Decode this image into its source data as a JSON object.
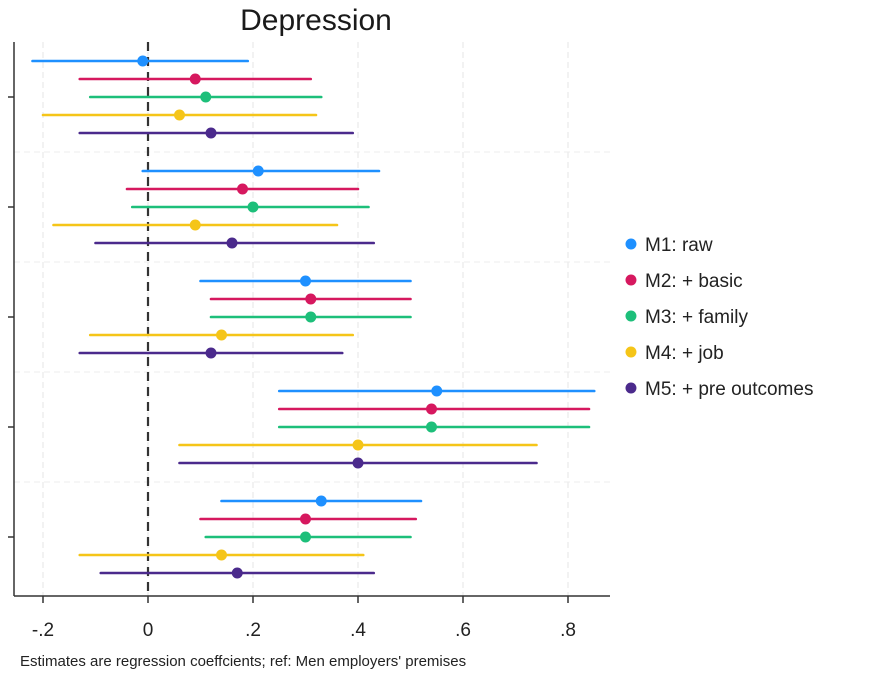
{
  "chart_data": {
    "type": "coefficient-plot",
    "title": "Depression",
    "note": "Estimates are regression coeffcients; ref: Men employers' premises",
    "x_ticks": [
      -0.2,
      0,
      0.2,
      0.4,
      0.6,
      0.8
    ],
    "x_tick_labels": [
      "-.2",
      "0",
      ".2",
      ".4",
      ".6",
      ".8"
    ],
    "xlim": [
      -0.24,
      0.88
    ],
    "reference_line": 0,
    "grid": true,
    "legend_position": "right",
    "groups_count": 5,
    "series": [
      {
        "name": "M1: raw",
        "color": "#1e90ff",
        "points": [
          {
            "est": -0.01,
            "lo": -0.22,
            "hi": 0.19
          },
          {
            "est": 0.21,
            "lo": -0.01,
            "hi": 0.44
          },
          {
            "est": 0.3,
            "lo": 0.1,
            "hi": 0.5
          },
          {
            "est": 0.55,
            "lo": 0.25,
            "hi": 0.85
          },
          {
            "est": 0.33,
            "lo": 0.14,
            "hi": 0.52
          }
        ]
      },
      {
        "name": "M2: + basic",
        "color": "#d6185f",
        "points": [
          {
            "est": 0.09,
            "lo": -0.13,
            "hi": 0.31
          },
          {
            "est": 0.18,
            "lo": -0.04,
            "hi": 0.4
          },
          {
            "est": 0.31,
            "lo": 0.12,
            "hi": 0.5
          },
          {
            "est": 0.54,
            "lo": 0.25,
            "hi": 0.84
          },
          {
            "est": 0.3,
            "lo": 0.1,
            "hi": 0.51
          }
        ]
      },
      {
        "name": "M3: + family",
        "color": "#1dbf7a",
        "points": [
          {
            "est": 0.11,
            "lo": -0.11,
            "hi": 0.33
          },
          {
            "est": 0.2,
            "lo": -0.03,
            "hi": 0.42
          },
          {
            "est": 0.31,
            "lo": 0.12,
            "hi": 0.5
          },
          {
            "est": 0.54,
            "lo": 0.25,
            "hi": 0.84
          },
          {
            "est": 0.3,
            "lo": 0.11,
            "hi": 0.5
          }
        ]
      },
      {
        "name": "M4: + job",
        "color": "#f5c518",
        "points": [
          {
            "est": 0.06,
            "lo": -0.2,
            "hi": 0.32
          },
          {
            "est": 0.09,
            "lo": -0.18,
            "hi": 0.36
          },
          {
            "est": 0.14,
            "lo": -0.11,
            "hi": 0.39
          },
          {
            "est": 0.4,
            "lo": 0.06,
            "hi": 0.74
          },
          {
            "est": 0.14,
            "lo": -0.13,
            "hi": 0.41
          }
        ]
      },
      {
        "name": "M5: + pre outcomes",
        "color": "#4b2a8c",
        "points": [
          {
            "est": 0.12,
            "lo": -0.13,
            "hi": 0.39
          },
          {
            "est": 0.16,
            "lo": -0.1,
            "hi": 0.43
          },
          {
            "est": 0.12,
            "lo": -0.13,
            "hi": 0.37
          },
          {
            "est": 0.4,
            "lo": 0.06,
            "hi": 0.74
          },
          {
            "est": 0.17,
            "lo": -0.09,
            "hi": 0.43
          }
        ]
      }
    ]
  }
}
